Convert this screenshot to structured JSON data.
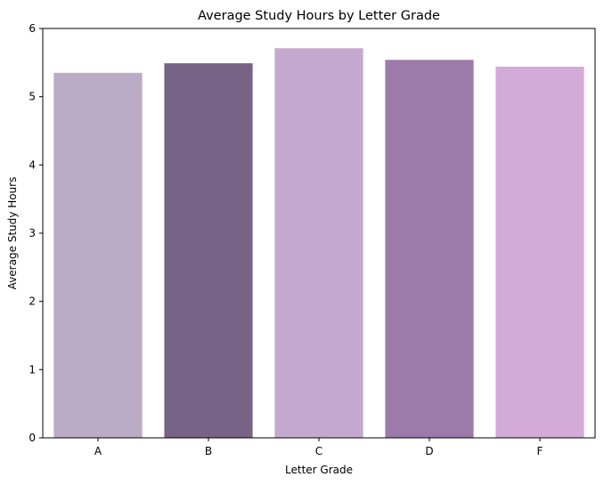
{
  "chart_data": {
    "type": "bar",
    "title": "Average Study Hours by Letter Grade",
    "xlabel": "Letter Grade",
    "ylabel": "Average Study Hours",
    "categories": [
      "A",
      "B",
      "C",
      "D",
      "F"
    ],
    "values": [
      5.35,
      5.49,
      5.71,
      5.54,
      5.44
    ],
    "colors": [
      "#baabc6",
      "#776386",
      "#c4a8cf",
      "#9c7aaa",
      "#d4abd8"
    ],
    "ylim": [
      0,
      6
    ],
    "yticks": [
      0,
      1,
      2,
      3,
      4,
      5,
      6
    ],
    "grid": false,
    "legend": "none"
  }
}
